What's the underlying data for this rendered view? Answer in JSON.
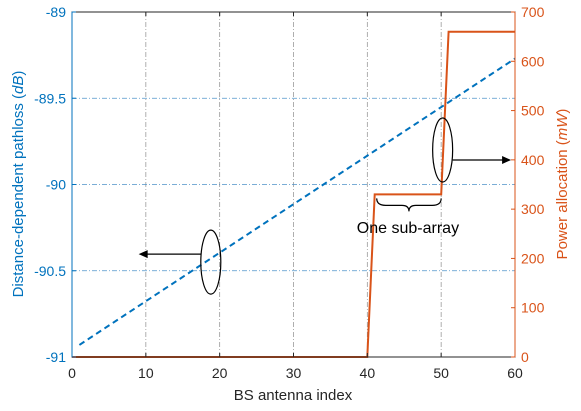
{
  "chart_data": {
    "type": "line",
    "x": {
      "label": "BS antenna index",
      "range": [
        0,
        60
      ],
      "ticks": [
        0,
        10,
        20,
        30,
        40,
        50,
        60
      ]
    },
    "y_left": {
      "label_main": "Distance-dependent pathloss (",
      "label_unit": "dB",
      "label_close": ")",
      "range": [
        -91,
        -89
      ],
      "ticks": [
        -91,
        -90.5,
        -90,
        -89.5,
        -89
      ],
      "tick_labels": [
        "-91",
        "-90.5",
        "-90",
        "-89.5",
        "-89"
      ],
      "color": "#0072BD"
    },
    "y_right": {
      "label_main": "Power allocation (",
      "label_unit": "mW",
      "label_close": ")",
      "range": [
        0,
        700
      ],
      "ticks": [
        0,
        100,
        200,
        300,
        400,
        500,
        600,
        700
      ],
      "color": "#D95319"
    },
    "grid": true,
    "series": [
      {
        "axis": "left",
        "style": "dashed",
        "color": "#0072BD",
        "points": [
          [
            1,
            -90.93
          ],
          [
            60,
            -89.27
          ]
        ]
      },
      {
        "axis": "right",
        "style": "solid",
        "color": "#D95319",
        "points": [
          [
            0,
            0
          ],
          [
            40,
            0
          ],
          [
            41,
            330
          ],
          [
            50,
            330
          ],
          [
            51,
            660
          ],
          [
            60,
            660
          ]
        ]
      }
    ],
    "annotations": [
      {
        "text": "One sub-array",
        "x": 45.5,
        "y_right": 262
      }
    ]
  }
}
